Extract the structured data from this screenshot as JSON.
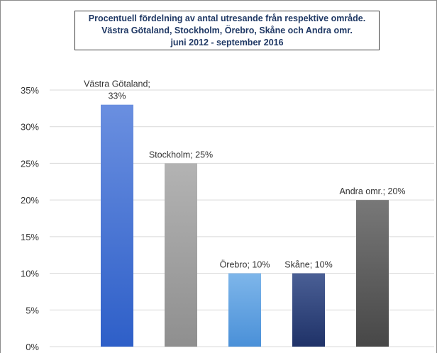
{
  "chart_data": {
    "type": "bar",
    "title": [
      "Procentuell fördelning av antal utresande från respektive område.",
      "Västra Götaland, Stockholm, Örebro, Skåne och Andra omr.",
      "juni 2012 - september 2016"
    ],
    "categories": [
      "Västra Götaland",
      "Stockholm",
      "Örebro",
      "Skåne",
      "Andra omr."
    ],
    "values": [
      33,
      25,
      10,
      10,
      20
    ],
    "data_labels": [
      [
        "Västra Götaland;",
        "33%"
      ],
      [
        "Stockholm; 25%"
      ],
      [
        "Örebro; 10%"
      ],
      [
        "Skåne; 10%"
      ],
      [
        "Andra omr.; 20%"
      ]
    ],
    "ylim": [
      0,
      35
    ],
    "yticks": [
      0,
      5,
      10,
      15,
      20,
      25,
      30,
      35
    ],
    "ytick_labels": [
      "0%",
      "5%",
      "10%",
      "15%",
      "20%",
      "25%",
      "30%",
      "35%"
    ],
    "grid": true,
    "xlabel": "",
    "ylabel": "",
    "colors": [
      [
        "#6a8fe0",
        "#2e5fc8"
      ],
      [
        "#b3b3b3",
        "#8f8f8f"
      ],
      [
        "#7eb6ea",
        "#4a90d8"
      ],
      [
        "#4a5f95",
        "#1f3268"
      ],
      [
        "#787878",
        "#474747"
      ]
    ],
    "grid_color": "#d9d9d9",
    "title_color": "#1f3864"
  }
}
